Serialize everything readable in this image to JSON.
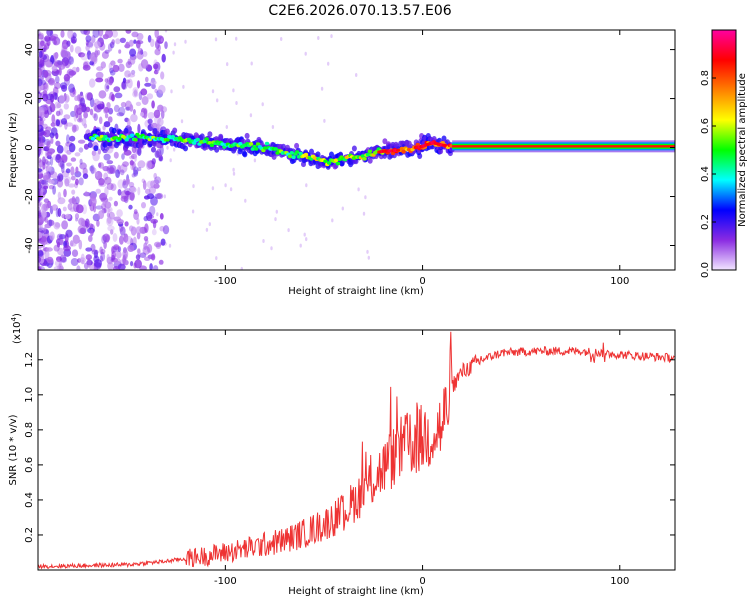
{
  "title": "C2E6.2026.070.13.57.E06",
  "chart_data": [
    {
      "type": "heatmap",
      "name": "spectrogram",
      "xlabel": "Height of straight line (km)",
      "ylabel": "Frequency (Hz)",
      "xlim": [
        -195,
        128
      ],
      "ylim": [
        -50,
        48
      ],
      "xticks": [
        -100,
        0,
        100
      ],
      "xtick_labels": [
        "-100",
        "0",
        "100"
      ],
      "yticks": [
        -40,
        -20,
        0,
        20,
        40
      ],
      "ytick_labels": [
        "-40",
        "-20",
        "0",
        "20",
        "40"
      ],
      "colorbar": {
        "label": "Normalized spectral amplitude",
        "range": [
          0,
          1
        ],
        "ticks": [
          0.0,
          0.2,
          0.4,
          0.6,
          0.8
        ],
        "tick_labels": [
          "0.0",
          "0.2",
          "0.4",
          "0.6",
          "0.8"
        ],
        "colors": [
          "#f2e6ff",
          "#8a2be2",
          "#0000ff",
          "#00ffff",
          "#00ff00",
          "#ffff00",
          "#ff8000",
          "#ff0000",
          "#ff00a0"
        ]
      },
      "ridge": {
        "x": [
          -160,
          -140,
          -120,
          -100,
          -80,
          -60,
          -48,
          -40,
          -30,
          -20,
          -10,
          0,
          5,
          10,
          15,
          128
        ],
        "freq": [
          4.0,
          4.0,
          3.0,
          1.5,
          0.0,
          -3.5,
          -6.0,
          -5.0,
          -3.0,
          -1.5,
          -1.0,
          0.5,
          2.0,
          1.0,
          0.5,
          0.5
        ]
      }
    },
    {
      "type": "line",
      "name": "snr",
      "xlabel": "Height of straight line (km)",
      "ylabel": "SNR (10 * v/v)",
      "yscale_label": "(x10",
      "yscale_exp": "4",
      "yscale_close": ")",
      "xlim": [
        -195,
        128
      ],
      "ylim": [
        0,
        1.37
      ],
      "xticks": [
        -100,
        0,
        100
      ],
      "xtick_labels": [
        "-100",
        "0",
        "100"
      ],
      "yticks": [
        0.2,
        0.4,
        0.6,
        0.8,
        1.0,
        1.2
      ],
      "ytick_labels": [
        "0.2",
        "0.4",
        "0.6",
        "0.8",
        "1.0",
        "1.2"
      ],
      "color": "#ee3333",
      "trend": {
        "x": [
          -195,
          -150,
          -130,
          -110,
          -90,
          -70,
          -60,
          -50,
          -40,
          -30,
          -20,
          -10,
          0,
          10,
          15,
          20,
          30,
          40,
          60,
          80,
          90,
          100,
          128
        ],
        "y": [
          0.02,
          0.03,
          0.05,
          0.08,
          0.12,
          0.17,
          0.21,
          0.26,
          0.33,
          0.45,
          0.58,
          0.7,
          0.75,
          0.82,
          1.05,
          1.13,
          1.2,
          1.24,
          1.25,
          1.25,
          1.24,
          1.23,
          1.21
        ]
      }
    }
  ]
}
